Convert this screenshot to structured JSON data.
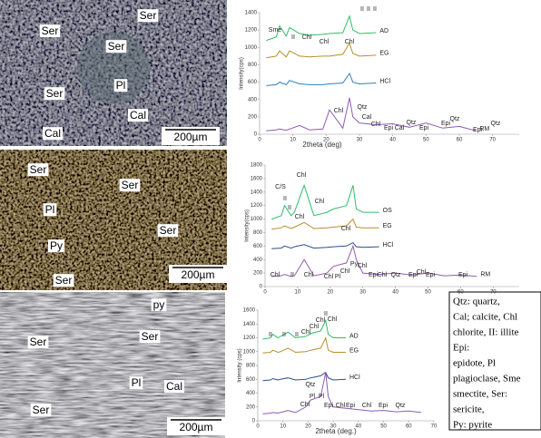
{
  "micrographs": [
    {
      "labels": [
        "Ser",
        "Ser",
        "Ser",
        "Pl",
        "Ser",
        "Cal",
        "Cal"
      ],
      "scale_bar": "200µm"
    },
    {
      "labels": [
        "Ser",
        "Ser",
        "Pl",
        "Ser",
        "Py",
        "Ser"
      ],
      "scale_bar": "200µm"
    },
    {
      "labels": [
        "py",
        "Ser",
        "Ser",
        "Pl",
        "Cal",
        "Ser"
      ],
      "scale_bar": "200µm"
    }
  ],
  "chart_data": [
    {
      "type": "line",
      "y_label": "Intensity(cps)",
      "x_label": "2theta (deg)",
      "x": [
        2,
        5,
        6,
        8,
        9,
        12,
        15,
        19,
        21,
        25,
        27,
        28,
        30,
        35,
        40,
        45,
        50,
        55,
        60,
        65
      ],
      "xlim": [
        0,
        78
      ],
      "xticks": [
        0,
        10,
        20,
        30,
        40,
        50,
        60,
        70
      ],
      "ylim": [
        0,
        1400
      ],
      "yticks": [
        0,
        200,
        400,
        600,
        800,
        1000,
        1200,
        1400
      ],
      "series": [
        {
          "name": "AD",
          "color": "#2fbf6a",
          "values": [
            1080,
            1120,
            1250,
            1130,
            1230,
            1160,
            1140,
            1150,
            1160,
            1170,
            1360,
            1200,
            1160,
            1170,
            null,
            null,
            null,
            null,
            null,
            null
          ]
        },
        {
          "name": "EG",
          "color": "#b8902a",
          "values": [
            880,
            900,
            960,
            890,
            960,
            900,
            890,
            900,
            900,
            920,
            1050,
            930,
            900,
            910,
            null,
            null,
            null,
            null,
            null,
            null
          ]
        },
        {
          "name": "HCl",
          "color": "#2f7fc0",
          "values": [
            560,
            570,
            600,
            570,
            620,
            580,
            570,
            570,
            580,
            590,
            700,
            600,
            580,
            590,
            null,
            null,
            null,
            null,
            null,
            null
          ]
        },
        {
          "name": "RM",
          "color": "#8e5bb5",
          "values": [
            40,
            50,
            60,
            45,
            60,
            100,
            50,
            60,
            280,
            70,
            420,
            200,
            130,
            110,
            120,
            80,
            130,
            70,
            90,
            40
          ]
        }
      ],
      "annotations": [
        "Sme",
        "II",
        "Chl",
        "Chl",
        "Chl",
        "II",
        "II",
        "II",
        "Chl",
        "Qtz",
        "Cal",
        "Chl",
        "Epi",
        "Cal",
        "Qtz",
        "Epi",
        "Epi",
        "Qtz",
        "Epi",
        "Qtz"
      ]
    },
    {
      "type": "line",
      "y_label": "Intensity(cps)",
      "x": [
        2,
        5,
        6,
        8,
        9,
        12,
        15,
        19,
        21,
        25,
        27,
        28,
        30,
        35,
        40,
        45,
        50,
        55,
        60,
        65
      ],
      "xlim": [
        0,
        78
      ],
      "xticks": [
        0,
        10,
        20,
        30,
        40,
        50,
        60,
        70
      ],
      "ylim": [
        0,
        1800
      ],
      "yticks": [
        0,
        200,
        400,
        600,
        800,
        1000,
        1200,
        1400,
        1600,
        1800
      ],
      "series": [
        {
          "name": "OS",
          "color": "#2fbf6a",
          "values": [
            1000,
            1050,
            1200,
            1050,
            1100,
            1500,
            1050,
            1100,
            1150,
            1200,
            1500,
            1150,
            1100,
            1100,
            null,
            null,
            null,
            null,
            null,
            null
          ]
        },
        {
          "name": "EG",
          "color": "#b8902a",
          "values": [
            850,
            870,
            900,
            860,
            880,
            950,
            860,
            870,
            880,
            900,
            1000,
            880,
            870,
            870,
            null,
            null,
            null,
            null,
            null,
            null
          ]
        },
        {
          "name": "HCl",
          "color": "#2a4f8f",
          "values": [
            560,
            570,
            600,
            570,
            590,
            620,
            570,
            580,
            590,
            600,
            650,
            590,
            580,
            590,
            null,
            null,
            null,
            null,
            null,
            null
          ]
        },
        {
          "name": "RM",
          "color": "#8e5bb5",
          "values": [
            150,
            160,
            180,
            150,
            160,
            400,
            160,
            200,
            300,
            350,
            600,
            400,
            200,
            180,
            200,
            170,
            200,
            160,
            170,
            150
          ]
        }
      ],
      "annotations": [
        "C/S",
        "Chl",
        "II",
        "II",
        "Chl",
        "Chl",
        "Chl",
        "Chl",
        "II",
        "Chl",
        "Chl",
        "Pl",
        "Chl",
        "Py",
        "Chl",
        "Epi",
        "Chl",
        "Qtz",
        "Epi",
        "Chl",
        "Epi",
        "Epi"
      ]
    },
    {
      "type": "line",
      "y_label": "Intensity (cps)",
      "x_label": "2theta (deg.)",
      "x": [
        2,
        5,
        6,
        8,
        9,
        12,
        15,
        19,
        21,
        25,
        27,
        28,
        30,
        35,
        40,
        45,
        50,
        55,
        60,
        65
      ],
      "xlim": [
        0,
        70
      ],
      "xticks": [
        0,
        10,
        20,
        30,
        40,
        50,
        60,
        70
      ],
      "ylim": [
        0,
        1600
      ],
      "yticks": [
        0,
        200,
        400,
        600,
        800,
        1000,
        1200,
        1400,
        1600
      ],
      "series": [
        {
          "name": "AD",
          "color": "#2fbf6a",
          "values": [
            1180,
            1200,
            1250,
            1200,
            1220,
            1280,
            1200,
            1220,
            1260,
            1300,
            1450,
            1250,
            1200,
            1200,
            null,
            null,
            null,
            null,
            null,
            null
          ]
        },
        {
          "name": "EG",
          "color": "#b8902a",
          "values": [
            980,
            990,
            1020,
            990,
            1000,
            1050,
            990,
            1000,
            1020,
            1050,
            1200,
            1020,
            990,
            990,
            null,
            null,
            null,
            null,
            null,
            null
          ]
        },
        {
          "name": "HCl",
          "color": "#2a4f8f",
          "values": [
            580,
            590,
            610,
            590,
            600,
            620,
            590,
            600,
            620,
            650,
            700,
            620,
            590,
            600,
            null,
            null,
            null,
            null,
            null,
            null
          ]
        },
        {
          "color": "#8e5bb5",
          "values": [
            100,
            110,
            120,
            110,
            120,
            150,
            120,
            200,
            300,
            350,
            700,
            350,
            200,
            180,
            160,
            140,
            150,
            130,
            140,
            120
          ]
        }
      ],
      "annotations": [
        "II",
        "II",
        "II",
        "Chl",
        "Chl",
        "Chl",
        "II",
        "Chl",
        "Qtz",
        "Pl",
        "Pl",
        "Chl",
        "Epi",
        "Chl",
        "Epi",
        "Chl",
        "Epi",
        "Qtz"
      ]
    }
  ],
  "legend_box": {
    "lines": [
      "Qtz:    quartz,",
      "Cal; calcite, Chl",
      "chlorite, II: illite",
      "Epi:",
      "epidote,          Pl",
      "plagioclase, Sme",
      "smectite, Ser:",
      "sericite,",
      "Py: pyrite"
    ]
  }
}
